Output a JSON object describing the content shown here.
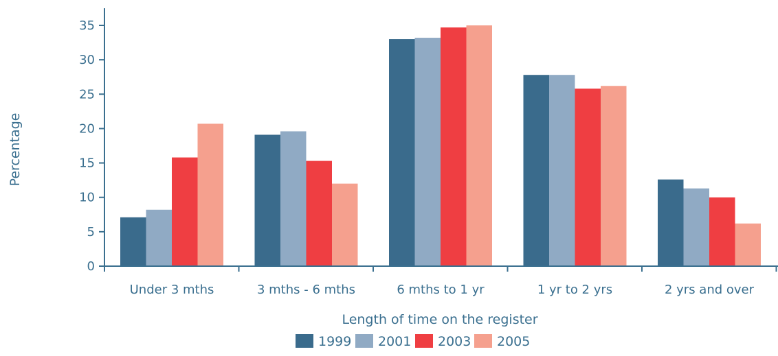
{
  "chart_data": {
    "type": "bar",
    "xlabel": "Length of time on the register",
    "ylabel": "Percentage",
    "ylim": [
      0,
      35
    ],
    "yticks": [
      0,
      5,
      10,
      15,
      20,
      25,
      30,
      35
    ],
    "grid": false,
    "legend_position": "bottom",
    "categories": [
      "Under 3 mths",
      "3 mths - 6 mths",
      "6 mths to 1 yr",
      "1 yr to 2 yrs",
      "2 yrs and over"
    ],
    "series": [
      {
        "name": "1999",
        "color": "#3a6b8c",
        "values": [
          7.1,
          19.1,
          33.0,
          27.8,
          12.6
        ]
      },
      {
        "name": "2001",
        "color": "#90aac4",
        "values": [
          8.2,
          19.6,
          33.2,
          27.8,
          11.3
        ]
      },
      {
        "name": "2003",
        "color": "#ef3e42",
        "values": [
          15.8,
          15.3,
          34.7,
          25.8,
          10.0
        ]
      },
      {
        "name": "2005",
        "color": "#f5a08e",
        "values": [
          20.7,
          12.0,
          35.0,
          26.2,
          6.2
        ]
      }
    ],
    "axis_color": "#3a6f8f"
  }
}
